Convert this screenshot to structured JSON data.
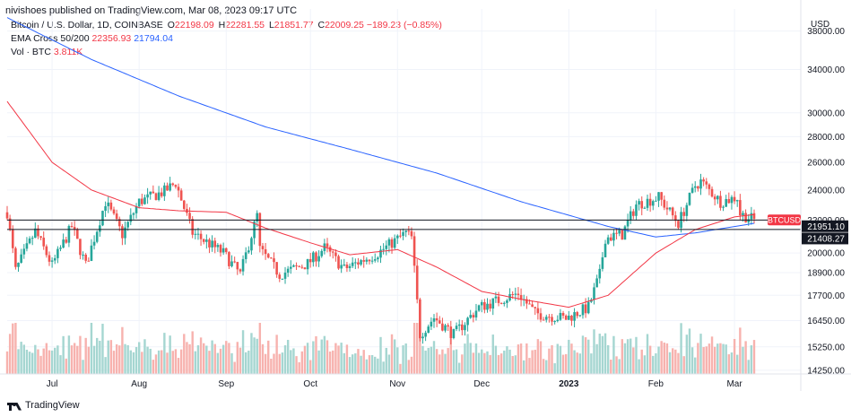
{
  "header": {
    "published": "nivishoes published on TradingView.com, Mar 08, 2023 09:17 UTC"
  },
  "legend": {
    "symbol": "Bitcoin / U.S. Dollar, 1D, COINBASE",
    "o_label": "O",
    "o": "22198.09",
    "h_label": "H",
    "h": "22281.55",
    "l_label": "L",
    "l": "21851.77",
    "c_label": "C",
    "c": "22009.25",
    "change": "−189.23 (−0.85%)",
    "ema_label": "EMA Cross 50/200",
    "ema50": "22356.93",
    "ema200": "21794.04",
    "vol_label": "Vol · BTC",
    "vol": "3.811K"
  },
  "footer": {
    "brand": "TradingView"
  },
  "colors": {
    "up": "#26a69a",
    "down": "#ef5350",
    "up_vol": "#a5d6d1",
    "down_vol": "#f7b2ae",
    "ema50": "#f23645",
    "ema200": "#2962ff",
    "last_label": "#f23645"
  },
  "chart_data": {
    "type": "candlestick",
    "currency": "USD",
    "symbol_label": "BTCUSD",
    "x_labels": [
      "Jul",
      "Aug",
      "Sep",
      "Oct",
      "Nov",
      "Dec",
      "2023",
      "Feb",
      "Mar"
    ],
    "x_label_dates": [
      "2022-07-01",
      "2022-08-01",
      "2022-09-01",
      "2022-10-01",
      "2022-11-01",
      "2022-12-01",
      "2023-01-01",
      "2023-02-01",
      "2023-03-01"
    ],
    "start_date": "2022-06-15",
    "end_date": "2023-03-08",
    "y_scale": "log",
    "y_ticks": [
      38000,
      34000,
      30000,
      28000,
      26000,
      24000,
      22000,
      20000,
      18900,
      17700,
      16450,
      15250,
      14250
    ],
    "y_tick_labels": [
      "38000.00",
      "34000.00",
      "30000.00",
      "28000.00",
      "26000.00",
      "24000.00",
      "22000.00",
      "20000.00",
      "18900.00",
      "17700.00",
      "16450.00",
      "15250.00",
      "14250.00"
    ],
    "y_range": [
      14100,
      40500
    ],
    "horizontal_lines": [
      {
        "value": 22000,
        "color": "#131722"
      },
      {
        "value": 21408.27,
        "color": "#131722",
        "label": "21408.27"
      }
    ],
    "price_labels": [
      {
        "value": 22009.25,
        "text": "BTCUSD",
        "style": "red"
      },
      {
        "value": 21951.1,
        "text": "21951.10",
        "style": "dark"
      },
      {
        "value": 21408.27,
        "text": "21408.27",
        "style": "dark"
      }
    ],
    "close_anchors": [
      [
        "2022-06-15",
        22500
      ],
      [
        "2022-06-18",
        19000
      ],
      [
        "2022-06-25",
        21300
      ],
      [
        "2022-07-01",
        19300
      ],
      [
        "2022-07-08",
        21600
      ],
      [
        "2022-07-13",
        19300
      ],
      [
        "2022-07-20",
        23200
      ],
      [
        "2022-07-26",
        21100
      ],
      [
        "2022-08-01",
        23200
      ],
      [
        "2022-08-10",
        23900
      ],
      [
        "2022-08-14",
        24500
      ],
      [
        "2022-08-20",
        21200
      ],
      [
        "2022-08-31",
        20000
      ],
      [
        "2022-09-06",
        18800
      ],
      [
        "2022-09-12",
        22300
      ],
      [
        "2022-09-13",
        20200
      ],
      [
        "2022-09-20",
        18800
      ],
      [
        "2022-09-30",
        19400
      ],
      [
        "2022-10-06",
        20300
      ],
      [
        "2022-10-13",
        19100
      ],
      [
        "2022-10-25",
        20000
      ],
      [
        "2022-11-04",
        21200
      ],
      [
        "2022-11-06",
        20900
      ],
      [
        "2022-11-09",
        15800
      ],
      [
        "2022-11-14",
        16600
      ],
      [
        "2022-11-21",
        15800
      ],
      [
        "2022-11-30",
        17100
      ],
      [
        "2022-12-14",
        17800
      ],
      [
        "2022-12-20",
        16800
      ],
      [
        "2022-12-31",
        16550
      ],
      [
        "2023-01-08",
        17100
      ],
      [
        "2023-01-12",
        18800
      ],
      [
        "2023-01-14",
        20900
      ],
      [
        "2023-01-20",
        21100
      ],
      [
        "2023-01-25",
        23000
      ],
      [
        "2023-02-02",
        23500
      ],
      [
        "2023-02-09",
        21800
      ],
      [
        "2023-02-15",
        24300
      ],
      [
        "2023-02-17",
        24600
      ],
      [
        "2023-02-24",
        23200
      ],
      [
        "2023-03-02",
        23500
      ],
      [
        "2023-03-03",
        22400
      ],
      [
        "2023-03-08",
        22009
      ]
    ],
    "ema200_anchors": [
      [
        "2022-06-15",
        39500
      ],
      [
        "2022-07-15",
        35000
      ],
      [
        "2022-08-15",
        31500
      ],
      [
        "2022-09-15",
        28800
      ],
      [
        "2022-10-15",
        27000
      ],
      [
        "2022-11-15",
        25200
      ],
      [
        "2022-12-15",
        23200
      ],
      [
        "2023-01-15",
        21600
      ],
      [
        "2023-02-01",
        20950
      ],
      [
        "2023-02-15",
        21200
      ],
      [
        "2023-03-08",
        21794
      ]
    ],
    "ema50_anchors": [
      [
        "2022-06-15",
        31000
      ],
      [
        "2022-07-01",
        26000
      ],
      [
        "2022-07-15",
        24000
      ],
      [
        "2022-08-01",
        22800
      ],
      [
        "2022-08-15",
        22600
      ],
      [
        "2022-09-01",
        22500
      ],
      [
        "2022-09-15",
        21500
      ],
      [
        "2022-10-01",
        20600
      ],
      [
        "2022-10-15",
        19900
      ],
      [
        "2022-11-01",
        20200
      ],
      [
        "2022-11-15",
        19200
      ],
      [
        "2022-12-01",
        17900
      ],
      [
        "2022-12-15",
        17500
      ],
      [
        "2023-01-01",
        17100
      ],
      [
        "2023-01-15",
        17700
      ],
      [
        "2023-02-01",
        20000
      ],
      [
        "2023-02-15",
        21400
      ],
      [
        "2023-03-01",
        22200
      ],
      [
        "2023-03-08",
        22357
      ]
    ]
  }
}
